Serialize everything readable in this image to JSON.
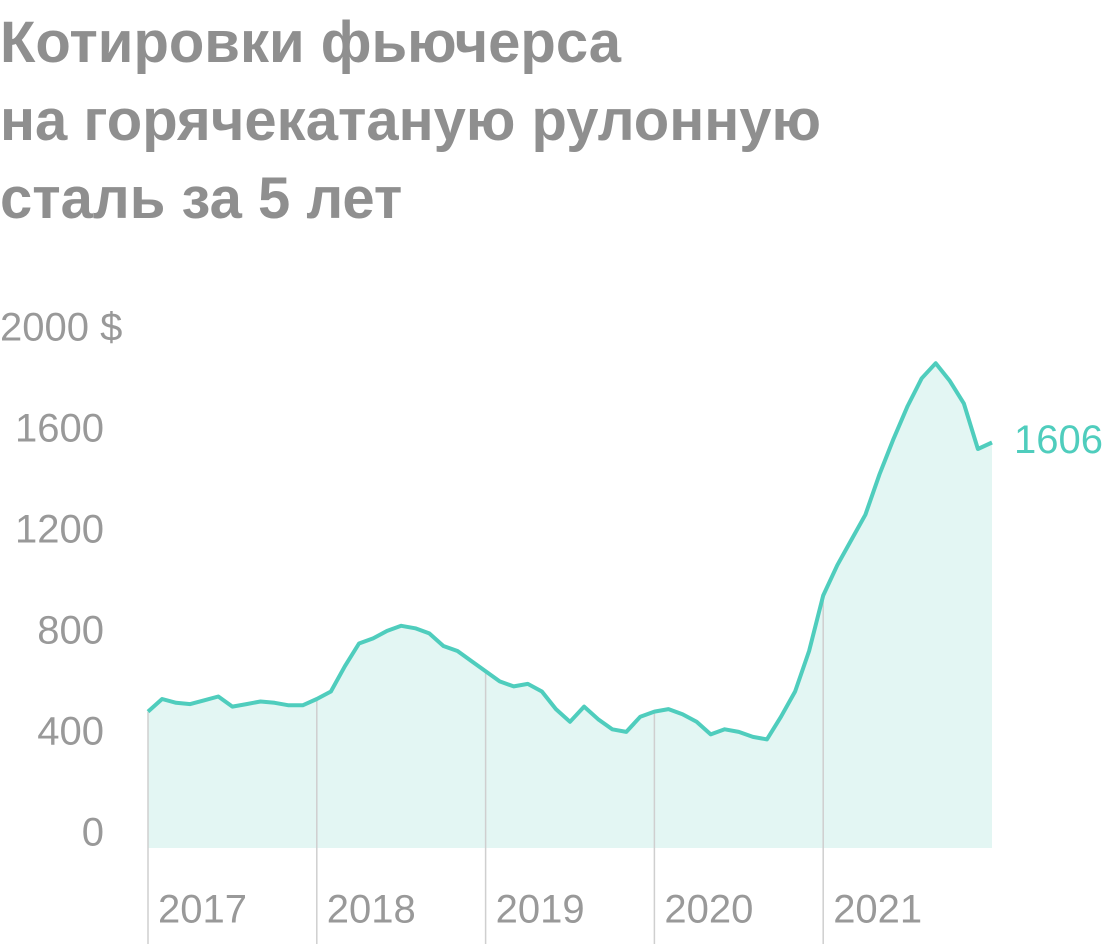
{
  "chart_data": {
    "type": "area",
    "title_lines": [
      "Котировки фьючерса",
      "на горячекатаную рулонную",
      "сталь за 5 лет"
    ],
    "categories": [
      "2017",
      null,
      null,
      null,
      null,
      null,
      null,
      null,
      null,
      null,
      null,
      null,
      "2018",
      null,
      null,
      null,
      null,
      null,
      null,
      null,
      null,
      null,
      null,
      null,
      "2019",
      null,
      null,
      null,
      null,
      null,
      null,
      null,
      null,
      null,
      null,
      null,
      "2020",
      null,
      null,
      null,
      null,
      null,
      null,
      null,
      null,
      null,
      null,
      null,
      "2021",
      null,
      null,
      null,
      null,
      null,
      null,
      null,
      null,
      null,
      null,
      null,
      null
    ],
    "series": [
      {
        "color": "#4fcdbd",
        "fill": "#e3f6f3",
        "values": [
          540,
          590,
          575,
          570,
          585,
          600,
          560,
          570,
          580,
          575,
          565,
          565,
          590,
          620,
          720,
          810,
          830,
          860,
          880,
          870,
          850,
          800,
          780,
          740,
          700,
          660,
          640,
          650,
          620,
          550,
          500,
          560,
          510,
          470,
          460,
          520,
          540,
          550,
          530,
          500,
          450,
          470,
          460,
          440,
          430,
          520,
          620,
          780,
          1000,
          1120,
          1220,
          1320,
          1480,
          1620,
          1750,
          1860,
          1920,
          1850,
          1760,
          1580,
          1606
        ]
      }
    ],
    "ylim": [
      0,
      2000
    ],
    "yticks": [
      0,
      400,
      800,
      1200,
      1600,
      {
        "value": 2000,
        "label": "2000 $"
      }
    ],
    "grid": false
  }
}
